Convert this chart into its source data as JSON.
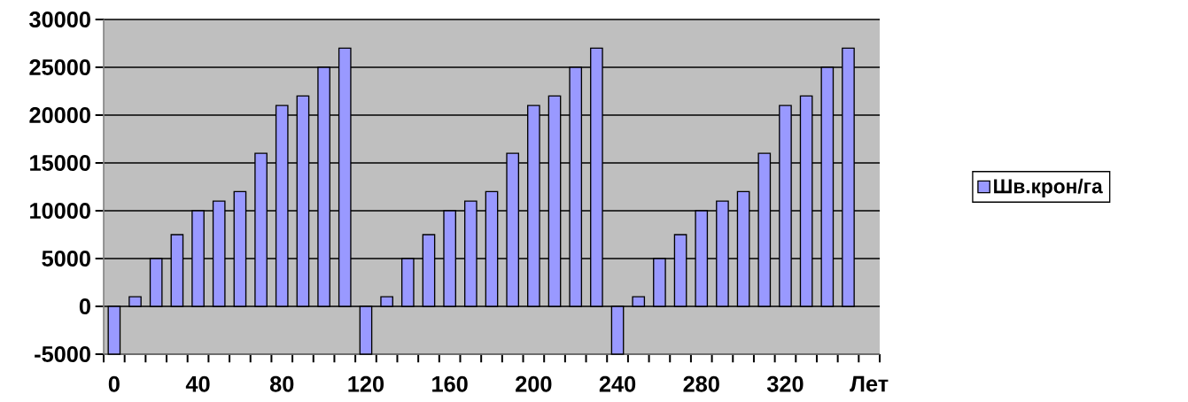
{
  "chart_data": {
    "type": "bar",
    "xlabel": "Лет",
    "categories": [
      "0",
      null,
      null,
      null,
      "40",
      null,
      null,
      null,
      "80",
      null,
      null,
      null,
      "120",
      null,
      null,
      null,
      "160",
      null,
      null,
      null,
      "200",
      null,
      null,
      null,
      "240",
      null,
      null,
      null,
      "280",
      null,
      null,
      null,
      "320",
      null,
      null,
      null
    ],
    "series": [
      {
        "name": "Шв.крон/га",
        "color": "#9999ff",
        "values": [
          -5000,
          1000,
          5000,
          7500,
          10000,
          11000,
          12000,
          16000,
          21000,
          22000,
          25000,
          27000,
          -5000,
          1000,
          5000,
          7500,
          10000,
          11000,
          12000,
          16000,
          21000,
          22000,
          25000,
          27000,
          -5000,
          1000,
          5000,
          7500,
          10000,
          11000,
          12000,
          16000,
          21000,
          22000,
          25000,
          27000
        ]
      }
    ],
    "ylim": [
      -5000,
      30000
    ],
    "yticks": [
      -5000,
      0,
      5000,
      10000,
      15000,
      20000,
      25000,
      30000
    ],
    "grid": "y",
    "legend": "right"
  }
}
